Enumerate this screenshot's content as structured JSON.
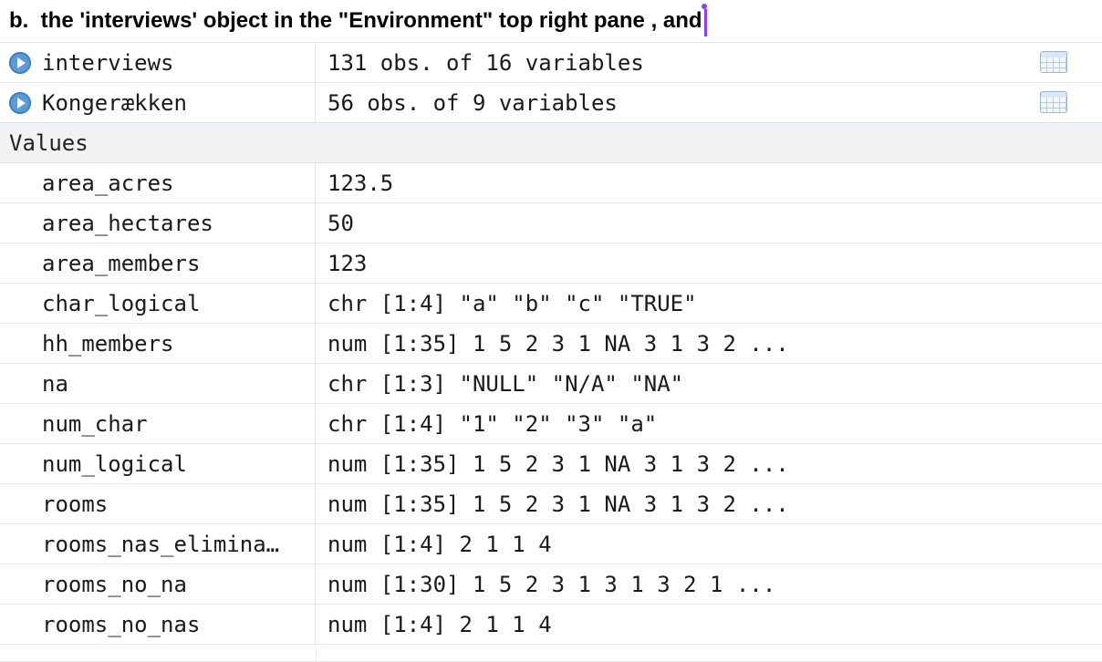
{
  "heading": {
    "text": "b.  the 'interviews' object in the \"Environment\" top right pane , and"
  },
  "environment": {
    "data_rows": [
      {
        "name": "interviews",
        "value": "131 obs. of 16 variables",
        "icon": "expand-arrow-icon",
        "view_icon": "table-view-icon"
      },
      {
        "name": "Kongerækken",
        "value": "56 obs. of 9 variables",
        "icon": "expand-arrow-icon",
        "view_icon": "table-view-icon"
      }
    ],
    "values_section_label": "Values",
    "values": [
      {
        "name": "area_acres",
        "value": "123.5"
      },
      {
        "name": "area_hectares",
        "value": "50"
      },
      {
        "name": "area_members",
        "value": "123"
      },
      {
        "name": "char_logical",
        "value": "chr [1:4] \"a\" \"b\" \"c\" \"TRUE\""
      },
      {
        "name": "hh_members",
        "value": "num [1:35] 1 5 2 3 1 NA 3 1 3 2 ..."
      },
      {
        "name": "na",
        "value": "chr [1:3] \"NULL\" \"N/A\" \"NA\""
      },
      {
        "name": "num_char",
        "value": "chr [1:4] \"1\" \"2\" \"3\" \"a\""
      },
      {
        "name": "num_logical",
        "value": "num [1:35] 1 5 2 3 1 NA 3 1 3 2 ..."
      },
      {
        "name": "rooms",
        "value": "num [1:35] 1 5 2 3 1 NA 3 1 3 2 ..."
      },
      {
        "name": "rooms_nas_elimina…",
        "value": "num [1:4] 2 1 1 4"
      },
      {
        "name": "rooms_no_na",
        "value": "num [1:30] 1 5 2 3 1 3 1 3 2 1 ..."
      },
      {
        "name": "rooms_no_nas",
        "value": "num [1:4] 2 1 1 4"
      }
    ]
  },
  "colors": {
    "accent_caret": "#8a3ffc",
    "expand_icon": "#5a9ad6",
    "section_bg": "#f0f2f3"
  }
}
